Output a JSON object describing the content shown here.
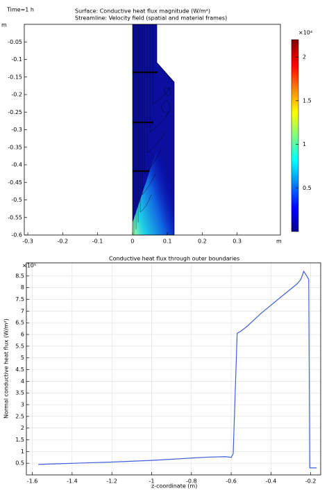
{
  "chart_data": [
    {
      "type": "surface",
      "time_label": "Time=1 h",
      "title": "Surface: Conductive heat flux magnitude (W/m²)",
      "subtitle": "Streamline: Velocity field (spatial and material frames)",
      "x_unit": "m",
      "y_unit": "m",
      "xlim": [
        -0.31,
        0.424
      ],
      "xticks": [
        -0.3,
        -0.2,
        -0.1,
        0,
        0.1,
        0.2,
        0.3
      ],
      "ylim": [
        -0.6,
        0
      ],
      "yticks": [
        -0.05,
        -0.1,
        -0.15,
        -0.2,
        -0.25,
        -0.3,
        -0.35,
        -0.4,
        -0.45,
        -0.5,
        -0.55,
        -0.6
      ],
      "colorbar_label": "×10⁴",
      "clim": [
        0,
        2.2
      ],
      "cticks": [
        0.5,
        1,
        1.5,
        2
      ],
      "colormap": "jet"
    },
    {
      "type": "line",
      "title": "Conductive heat flux through outer boundaries",
      "xlabel": "z-coordinate (m)",
      "ylabel": "Normal conductive heat flux (W/m²)",
      "y_multiplier": "×10⁵",
      "xlim": [
        -1.63,
        -0.15
      ],
      "xticks": [
        -1.6,
        -1.4,
        -1.2,
        -1,
        -0.8,
        -0.6,
        -0.4,
        -0.2
      ],
      "ylim": [
        0,
        9.06
      ],
      "yticks": [
        0.5,
        1,
        1.5,
        2,
        2.5,
        3,
        3.5,
        4,
        4.5,
        5,
        5.5,
        6,
        6.5,
        7,
        7.5,
        8,
        8.5
      ],
      "grid": true,
      "color": "#3f5fd8",
      "x": [
        -1.57,
        -1.2,
        -1.0,
        -0.8,
        -0.72,
        -0.63,
        -0.6,
        -0.59,
        -0.57,
        -0.55,
        -0.52,
        -0.45,
        -0.35,
        -0.27,
        -0.25,
        -0.235,
        -0.22,
        -0.21,
        -0.205,
        -0.17
      ],
      "values": [
        0.45,
        0.55,
        0.62,
        0.72,
        0.76,
        0.78,
        0.75,
        0.9,
        6.05,
        6.15,
        6.35,
        6.9,
        7.6,
        8.15,
        8.35,
        8.7,
        8.5,
        8.35,
        0.3,
        0.3
      ]
    }
  ]
}
